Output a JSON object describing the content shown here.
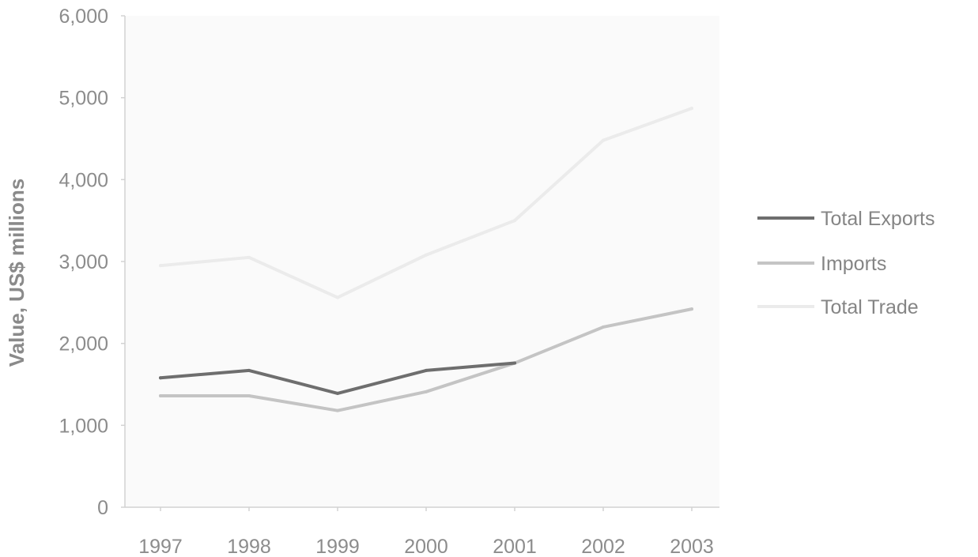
{
  "chart_data": {
    "type": "line",
    "title": "",
    "xlabel": "",
    "ylabel": "Value, US$ millions",
    "categories": [
      "1997",
      "1998",
      "1999",
      "2000",
      "2001",
      "2002",
      "2003"
    ],
    "ylim": [
      0,
      6000
    ],
    "y_ticks": [
      0,
      1000,
      2000,
      3000,
      4000,
      5000,
      6000
    ],
    "y_tick_labels": [
      "0",
      "1,000",
      "2,000",
      "3,000",
      "4,000",
      "5,000",
      "6,000"
    ],
    "grid": false,
    "legend_position": "right",
    "series": [
      {
        "name": "Total Exports",
        "color": "#6e6e6e",
        "values": [
          1580,
          1670,
          1390,
          1670,
          1760,
          null,
          null
        ]
      },
      {
        "name": "Imports",
        "color": "#c4c4c4",
        "values": [
          1360,
          1360,
          1180,
          1410,
          1760,
          2200,
          2420
        ]
      },
      {
        "name": "Total Trade",
        "color": "#ebebeb",
        "values": [
          2950,
          3050,
          2560,
          3080,
          3500,
          4480,
          4870
        ]
      }
    ]
  }
}
